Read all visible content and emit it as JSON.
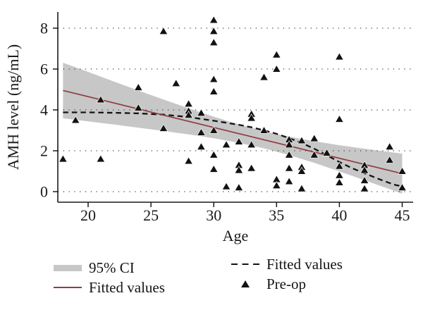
{
  "figure": {
    "background": "#ffffff",
    "text_color": "#1a1a1a",
    "band_color": "#c7c7c7",
    "fit_line_color": "#8e3d41",
    "dashed_line_color": "#141414",
    "marker_color": "#121212",
    "grid_dot_color": "#3c3c3c"
  },
  "legend": {
    "ci_label": "95% CI",
    "linear_fit_label": "Fitted values",
    "lowess_fit_label": "Fitted values",
    "points_label": "Pre-op"
  },
  "chart_data": {
    "type": "scatter",
    "title": "",
    "xlabel": "Age",
    "ylabel": "AMH level (ng/mL)",
    "xlim": [
      17.6,
      45.9
    ],
    "ylim": [
      -0.5,
      8.8
    ],
    "x_ticks": [
      20,
      25,
      30,
      35,
      40,
      45
    ],
    "y_ticks": [
      0,
      2,
      4,
      6,
      8
    ],
    "grid": "horizontal-dotted",
    "legend_position": "bottom-two-columns",
    "series": [
      {
        "name": "Pre-op",
        "type": "scatter-triangle",
        "color": "#121212",
        "points": [
          [
            18,
            1.6
          ],
          [
            19,
            3.5
          ],
          [
            21,
            4.5
          ],
          [
            21,
            1.6
          ],
          [
            24,
            5.1
          ],
          [
            24,
            4.1
          ],
          [
            26,
            7.85
          ],
          [
            26,
            3.1
          ],
          [
            27,
            5.3
          ],
          [
            28,
            4.3
          ],
          [
            28,
            3.95
          ],
          [
            28,
            3.75
          ],
          [
            28,
            1.5
          ],
          [
            29,
            3.85
          ],
          [
            29,
            2.9
          ],
          [
            29,
            2.2
          ],
          [
            30,
            8.4
          ],
          [
            30,
            7.85
          ],
          [
            30,
            7.3
          ],
          [
            30,
            5.5
          ],
          [
            30,
            4.9
          ],
          [
            30,
            3.0
          ],
          [
            30,
            1.8
          ],
          [
            30,
            1.1
          ],
          [
            31,
            2.3
          ],
          [
            31,
            0.25
          ],
          [
            32,
            2.45
          ],
          [
            32,
            1.3
          ],
          [
            32,
            1.05
          ],
          [
            32,
            0.2
          ],
          [
            33,
            3.8
          ],
          [
            33,
            3.6
          ],
          [
            33,
            2.3
          ],
          [
            33,
            1.15
          ],
          [
            34,
            5.6
          ],
          [
            34,
            3.0
          ],
          [
            35,
            6.7
          ],
          [
            35,
            6.0
          ],
          [
            35,
            0.6
          ],
          [
            35,
            0.3
          ],
          [
            36,
            2.55
          ],
          [
            36,
            2.3
          ],
          [
            36,
            1.8
          ],
          [
            36,
            1.15
          ],
          [
            36,
            0.5
          ],
          [
            37,
            2.5
          ],
          [
            37,
            1.2
          ],
          [
            37,
            1.0
          ],
          [
            37,
            0.15
          ],
          [
            38,
            2.6
          ],
          [
            38,
            1.8
          ],
          [
            39,
            1.9
          ],
          [
            40,
            6.6
          ],
          [
            40,
            3.55
          ],
          [
            40,
            1.25
          ],
          [
            40,
            0.8
          ],
          [
            40,
            0.45
          ],
          [
            42,
            1.3
          ],
          [
            42,
            1.05
          ],
          [
            42,
            0.55
          ],
          [
            42,
            0.15
          ],
          [
            44,
            2.2
          ],
          [
            44,
            1.55
          ],
          [
            45,
            1.0
          ],
          [
            45,
            0.2
          ]
        ]
      },
      {
        "name": "Fitted values (linear)",
        "type": "line",
        "style": "solid",
        "color": "#8e3d41",
        "points": [
          [
            18,
            4.95
          ],
          [
            45,
            0.88
          ]
        ]
      },
      {
        "name": "Fitted values (lowess)",
        "type": "line",
        "style": "dashed",
        "color": "#141414",
        "points": [
          [
            18,
            3.88
          ],
          [
            20,
            3.88
          ],
          [
            22,
            3.86
          ],
          [
            24,
            3.83
          ],
          [
            26,
            3.77
          ],
          [
            28,
            3.65
          ],
          [
            30,
            3.47
          ],
          [
            32,
            3.27
          ],
          [
            33,
            3.15
          ],
          [
            34,
            3.0
          ],
          [
            35,
            2.83
          ],
          [
            36,
            2.62
          ],
          [
            37,
            2.38
          ],
          [
            38,
            2.1
          ],
          [
            39,
            1.78
          ],
          [
            40,
            1.45
          ],
          [
            41,
            1.15
          ],
          [
            42,
            0.9
          ],
          [
            43,
            0.65
          ],
          [
            44,
            0.42
          ],
          [
            44.5,
            0.32
          ],
          [
            45,
            0.26
          ]
        ]
      },
      {
        "name": "95% CI",
        "type": "band",
        "color": "#c7c7c7",
        "ages": [
          18,
          20,
          22,
          24,
          26,
          28,
          30,
          32,
          34,
          36,
          38,
          40,
          42,
          44,
          45
        ],
        "lower": [
          3.59,
          3.44,
          3.29,
          3.13,
          2.97,
          2.8,
          2.61,
          2.39,
          2.12,
          1.79,
          1.41,
          0.99,
          0.56,
          0.12,
          -0.1
        ],
        "upper": [
          6.31,
          5.86,
          5.4,
          4.95,
          4.51,
          4.08,
          3.67,
          3.29,
          2.96,
          2.69,
          2.47,
          2.27,
          2.1,
          1.94,
          1.86
        ]
      }
    ]
  }
}
